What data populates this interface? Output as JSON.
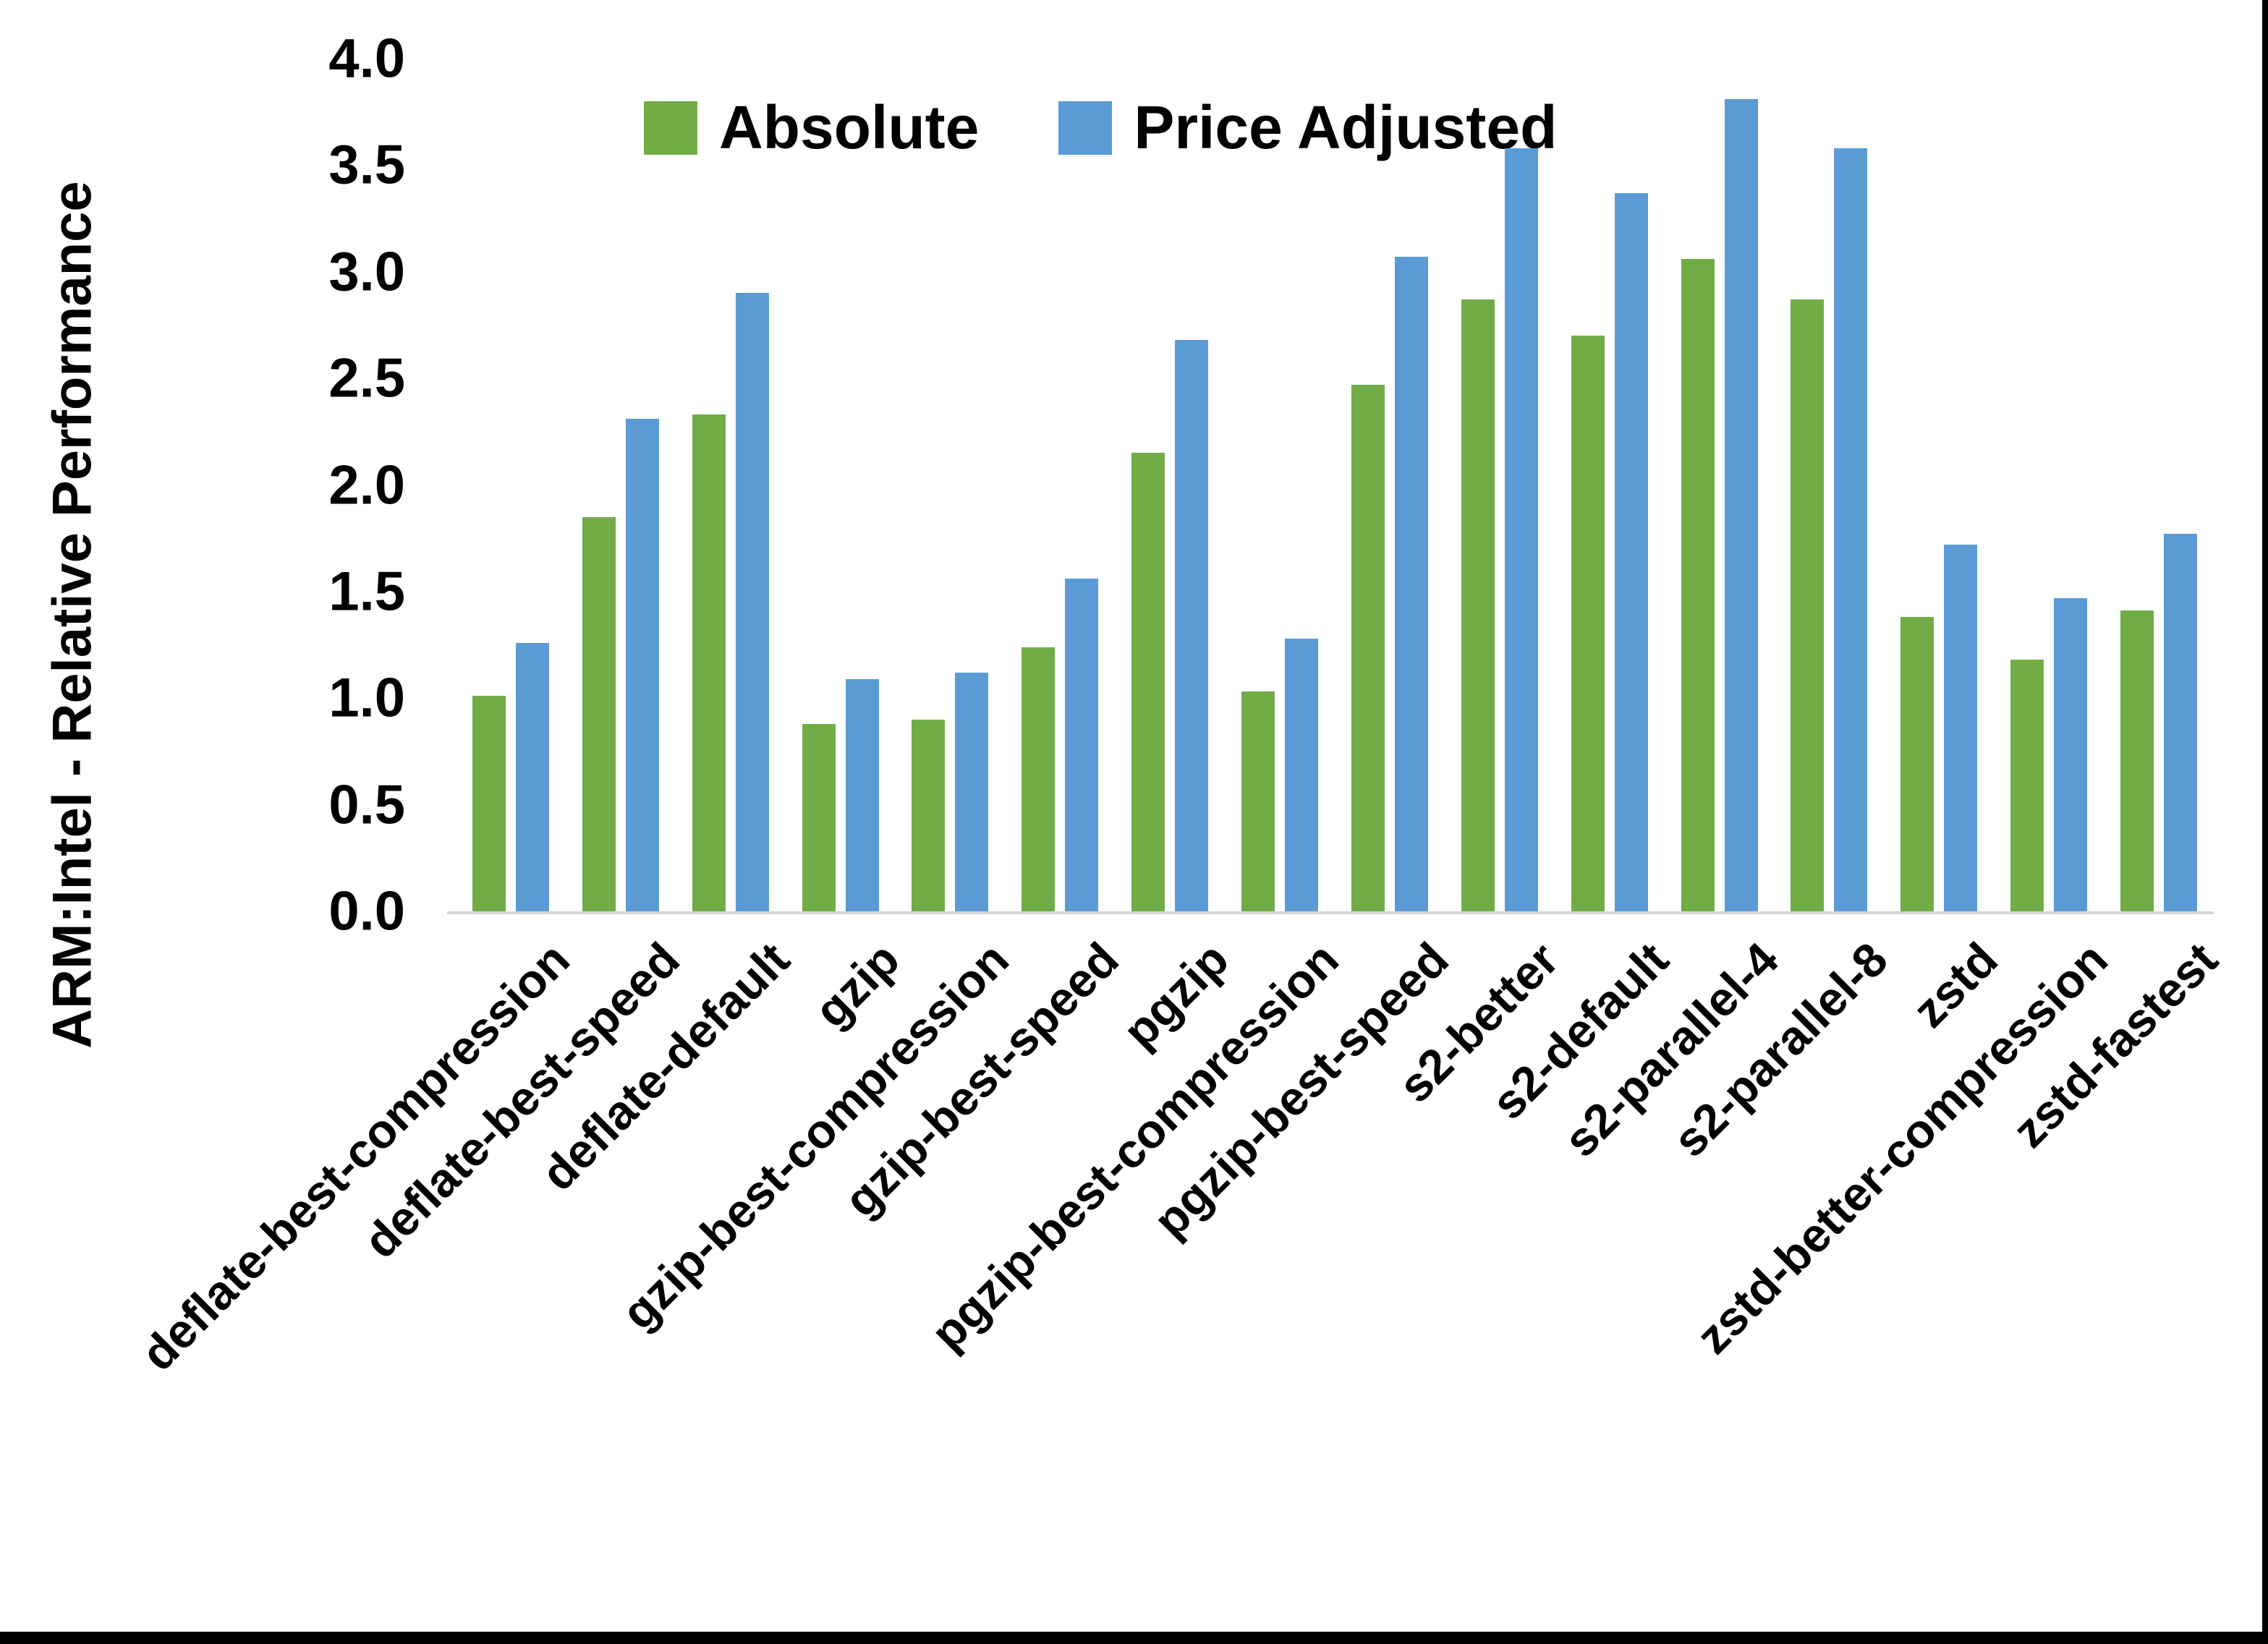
{
  "chart_data": {
    "type": "bar",
    "title": "",
    "xlabel": "",
    "ylabel": "ARM:Intel - Relative Performance",
    "ylim": [
      0.0,
      4.0
    ],
    "ytick_labels": [
      "0.0",
      "0.5",
      "1.0",
      "1.5",
      "2.0",
      "2.5",
      "3.0",
      "3.5",
      "4.0"
    ],
    "grid": false,
    "legend_position": "top-center",
    "categories": [
      "deflate-best-compression",
      "deflate-best-speed",
      "deflate-default",
      "gzip",
      "gzip-best-compression",
      "gzip-best-speed",
      "pgzip",
      "pgzip-best-compression",
      "pgzip-best-speed",
      "s2-better",
      "s2-default",
      "s2-parallel-4",
      "s2-parallel-8",
      "zstd",
      "zstd-better-compression",
      "zstd-fastest"
    ],
    "series": [
      {
        "name": "Absolute",
        "color": "#70AD47",
        "values": [
          1.01,
          1.85,
          2.33,
          0.88,
          0.9,
          1.24,
          2.15,
          1.03,
          2.47,
          2.87,
          2.7,
          3.06,
          2.87,
          1.38,
          1.18,
          1.41
        ]
      },
      {
        "name": "Price Adjusted",
        "color": "#5B9BD5",
        "values": [
          1.26,
          2.31,
          2.9,
          1.09,
          1.12,
          1.56,
          2.68,
          1.28,
          3.07,
          3.58,
          3.37,
          3.81,
          3.58,
          1.72,
          1.47,
          1.77
        ]
      }
    ],
    "axis_line_color": "#D6D6D6",
    "text_color": "#000000"
  },
  "frame": {
    "right_border_color": "#000000",
    "bottom_border_color": "#000000"
  }
}
